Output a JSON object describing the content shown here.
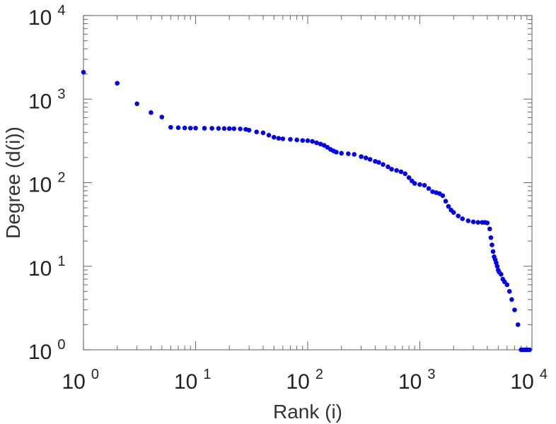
{
  "chart_data": {
    "type": "scatter",
    "xlabel": "Rank (i)",
    "ylabel": "Degree (d(i))",
    "xscale": "log",
    "yscale": "log",
    "xlim": [
      1,
      10000
    ],
    "ylim": [
      1,
      10000
    ],
    "grid": false,
    "marker_color": "#0000ee",
    "x_ticks": [
      {
        "base": "10",
        "exp": "0"
      },
      {
        "base": "10",
        "exp": "1"
      },
      {
        "base": "10",
        "exp": "2"
      },
      {
        "base": "10",
        "exp": "3"
      },
      {
        "base": "10",
        "exp": "4"
      }
    ],
    "y_ticks": [
      {
        "base": "10",
        "exp": "0"
      },
      {
        "base": "10",
        "exp": "1"
      },
      {
        "base": "10",
        "exp": "2"
      },
      {
        "base": "10",
        "exp": "3"
      },
      {
        "base": "10",
        "exp": "4"
      }
    ],
    "series": [
      {
        "values": [
          [
            1,
            2100
          ],
          [
            2,
            1550
          ],
          [
            3,
            880
          ],
          [
            4,
            690
          ],
          [
            5,
            610
          ],
          [
            6,
            460
          ],
          [
            7,
            455
          ],
          [
            8,
            452
          ],
          [
            9,
            450
          ],
          [
            10,
            450
          ],
          [
            12,
            448
          ],
          [
            14,
            447
          ],
          [
            16,
            446
          ],
          [
            18,
            445
          ],
          [
            20,
            444
          ],
          [
            22,
            443
          ],
          [
            25,
            440
          ],
          [
            28,
            435
          ],
          [
            30,
            425
          ],
          [
            35,
            405
          ],
          [
            40,
            395
          ],
          [
            45,
            370
          ],
          [
            50,
            350
          ],
          [
            55,
            340
          ],
          [
            60,
            335
          ],
          [
            70,
            330
          ],
          [
            80,
            325
          ],
          [
            90,
            320
          ],
          [
            100,
            318
          ],
          [
            110,
            312
          ],
          [
            120,
            300
          ],
          [
            130,
            290
          ],
          [
            140,
            280
          ],
          [
            150,
            265
          ],
          [
            160,
            250
          ],
          [
            170,
            240
          ],
          [
            180,
            232
          ],
          [
            200,
            225
          ],
          [
            230,
            222
          ],
          [
            260,
            218
          ],
          [
            300,
            205
          ],
          [
            330,
            198
          ],
          [
            360,
            190
          ],
          [
            400,
            180
          ],
          [
            430,
            175
          ],
          [
            470,
            165
          ],
          [
            520,
            155
          ],
          [
            560,
            145
          ],
          [
            620,
            140
          ],
          [
            680,
            135
          ],
          [
            740,
            128
          ],
          [
            800,
            115
          ],
          [
            850,
            105
          ],
          [
            900,
            98
          ],
          [
            1000,
            95
          ],
          [
            1100,
            93
          ],
          [
            1200,
            85
          ],
          [
            1300,
            78
          ],
          [
            1400,
            76
          ],
          [
            1500,
            74
          ],
          [
            1600,
            70
          ],
          [
            1700,
            60
          ],
          [
            1800,
            52
          ],
          [
            1900,
            47
          ],
          [
            2000,
            44
          ],
          [
            2200,
            40
          ],
          [
            2400,
            37
          ],
          [
            2700,
            35
          ],
          [
            3000,
            34
          ],
          [
            3300,
            33.5
          ],
          [
            3600,
            33.5
          ],
          [
            3800,
            33.5
          ],
          [
            4000,
            33
          ],
          [
            4200,
            28
          ],
          [
            4300,
            22
          ],
          [
            4400,
            18
          ],
          [
            4500,
            15
          ],
          [
            4600,
            13
          ],
          [
            4700,
            12
          ],
          [
            4800,
            11
          ],
          [
            4900,
            10
          ],
          [
            5000,
            9
          ],
          [
            5100,
            8.5
          ],
          [
            5300,
            8
          ],
          [
            5500,
            7
          ],
          [
            5700,
            6.5
          ],
          [
            6000,
            6
          ],
          [
            6300,
            5
          ],
          [
            6600,
            4
          ],
          [
            7000,
            3
          ],
          [
            7500,
            2
          ],
          [
            8000,
            1
          ],
          [
            8300,
            1
          ],
          [
            8600,
            1
          ],
          [
            8900,
            1
          ],
          [
            9200,
            1
          ],
          [
            9500,
            1
          ]
        ]
      }
    ]
  }
}
